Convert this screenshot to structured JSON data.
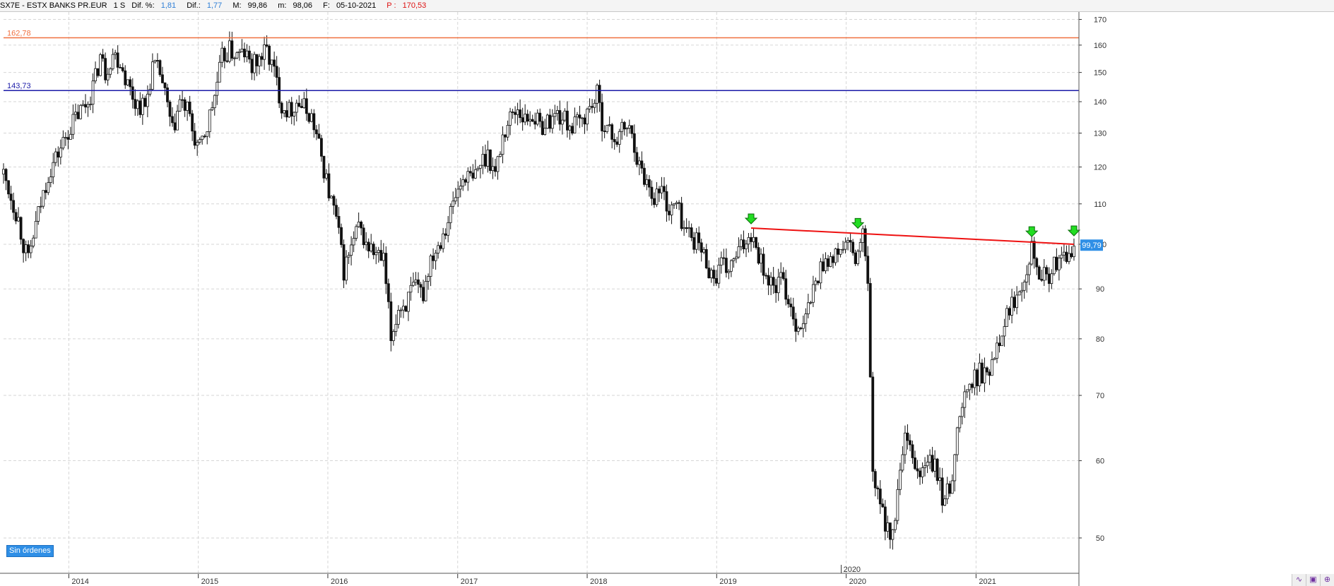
{
  "header": {
    "symbol": "SX7E - ESTX BANKS PR.EUR",
    "timeframe": "1 S",
    "dif_pct_label": "Dif. %:",
    "dif_pct_value": "1,81",
    "dif_label": "Dif.:",
    "dif_value": "1,77",
    "max_label": "M:",
    "max_value": "99,86",
    "min_label": "m:",
    "min_value": "98,06",
    "date_label": "F:",
    "date_value": "05-10-2021",
    "price_label": "P :",
    "price_value": "170,53"
  },
  "orders_badge": "Sin órdenes",
  "chart_data": {
    "type": "candlestick",
    "y_scale": "log",
    "ylim": [
      46,
      173
    ],
    "xlim": [
      "2013-07-01",
      "2021-10-18"
    ],
    "ytick_labels": [
      "170",
      "160",
      "150",
      "140",
      "130",
      "120",
      "110",
      "100",
      "90",
      "80",
      "70",
      "60",
      "50"
    ],
    "xtick_labels": [
      "2014",
      "2015",
      "2016",
      "2017",
      "2018",
      "2019",
      "2020",
      "2021"
    ],
    "secondary_x_label": "2020",
    "last_price_label": "99,79",
    "last_price": 99.79,
    "grid": true,
    "horizontal_levels": [
      {
        "value": 162.78,
        "label": "162,78",
        "color": "#f07040"
      },
      {
        "value": 143.73,
        "label": "143,73",
        "color": "#1a1aa8"
      }
    ],
    "resistance_line": {
      "color": "#ee1111",
      "points": [
        [
          "2019-04-08",
          103.9
        ],
        [
          "2021-10-04",
          100.0
        ]
      ]
    },
    "markers": [
      {
        "date": "2019-04-08",
        "value": 103.9
      },
      {
        "date": "2020-02-03",
        "value": 102.8
      },
      {
        "date": "2021-06-07",
        "value": 100.8
      },
      {
        "date": "2021-10-04",
        "value": 101.0
      }
    ],
    "weekly_close_series": [
      [
        "2013-07-01",
        118
      ],
      [
        "2013-07-22",
        112
      ],
      [
        "2013-08-12",
        106
      ],
      [
        "2013-08-26",
        100
      ],
      [
        "2013-09-09",
        96
      ],
      [
        "2013-09-23",
        102
      ],
      [
        "2013-10-14",
        110
      ],
      [
        "2013-11-04",
        118
      ],
      [
        "2013-12-02",
        124
      ],
      [
        "2014-01-06",
        132
      ],
      [
        "2014-01-27",
        136
      ],
      [
        "2014-02-24",
        140
      ],
      [
        "2014-03-17",
        148
      ],
      [
        "2014-03-31",
        156
      ],
      [
        "2014-04-14",
        150
      ],
      [
        "2014-05-05",
        157
      ],
      [
        "2014-05-26",
        154
      ],
      [
        "2014-06-16",
        146
      ],
      [
        "2014-07-07",
        140
      ],
      [
        "2014-08-04",
        138
      ],
      [
        "2014-08-25",
        152
      ],
      [
        "2014-09-15",
        150
      ],
      [
        "2014-10-06",
        138
      ],
      [
        "2014-10-20",
        130
      ],
      [
        "2014-11-10",
        140
      ],
      [
        "2014-12-01",
        137
      ],
      [
        "2014-12-22",
        128
      ],
      [
        "2015-01-05",
        125
      ],
      [
        "2015-01-26",
        132
      ],
      [
        "2015-02-16",
        142
      ],
      [
        "2015-03-09",
        155
      ],
      [
        "2015-03-30",
        158
      ],
      [
        "2015-04-20",
        156
      ],
      [
        "2015-05-11",
        157
      ],
      [
        "2015-06-01",
        152
      ],
      [
        "2015-06-22",
        155
      ],
      [
        "2015-07-13",
        158
      ],
      [
        "2015-08-03",
        150
      ],
      [
        "2015-08-24",
        139
      ],
      [
        "2015-09-14",
        137
      ],
      [
        "2015-10-05",
        140
      ],
      [
        "2015-10-26",
        138
      ],
      [
        "2015-11-16",
        135
      ],
      [
        "2015-12-07",
        126
      ],
      [
        "2016-01-04",
        113
      ],
      [
        "2016-01-25",
        106
      ],
      [
        "2016-02-15",
        94
      ],
      [
        "2016-03-07",
        99
      ],
      [
        "2016-03-28",
        104
      ],
      [
        "2016-04-18",
        100
      ],
      [
        "2016-05-09",
        98
      ],
      [
        "2016-06-06",
        96
      ],
      [
        "2016-06-27",
        80
      ],
      [
        "2016-07-18",
        86
      ],
      [
        "2016-08-08",
        87
      ],
      [
        "2016-08-29",
        90
      ],
      [
        "2016-09-26",
        89
      ],
      [
        "2016-10-17",
        97
      ],
      [
        "2016-11-07",
        100
      ],
      [
        "2016-12-05",
        106
      ],
      [
        "2016-12-26",
        112
      ],
      [
        "2017-01-23",
        118
      ],
      [
        "2017-02-13",
        116
      ],
      [
        "2017-03-06",
        121
      ],
      [
        "2017-03-27",
        124
      ],
      [
        "2017-04-17",
        118
      ],
      [
        "2017-05-08",
        129
      ],
      [
        "2017-05-29",
        135
      ],
      [
        "2017-06-19",
        138
      ],
      [
        "2017-07-10",
        134
      ],
      [
        "2017-07-31",
        136
      ],
      [
        "2017-08-21",
        132
      ],
      [
        "2017-09-18",
        134
      ],
      [
        "2017-10-09",
        136
      ],
      [
        "2017-10-30",
        134
      ],
      [
        "2017-11-20",
        132
      ],
      [
        "2017-12-18",
        134
      ],
      [
        "2018-01-08",
        138
      ],
      [
        "2018-01-29",
        142
      ],
      [
        "2018-02-12",
        134
      ],
      [
        "2018-03-05",
        130
      ],
      [
        "2018-03-26",
        128
      ],
      [
        "2018-04-16",
        132
      ],
      [
        "2018-05-07",
        130
      ],
      [
        "2018-05-28",
        120
      ],
      [
        "2018-06-18",
        116
      ],
      [
        "2018-07-09",
        112
      ],
      [
        "2018-07-30",
        114
      ],
      [
        "2018-08-20",
        108
      ],
      [
        "2018-09-10",
        110
      ],
      [
        "2018-10-01",
        104
      ],
      [
        "2018-10-22",
        102
      ],
      [
        "2018-11-12",
        100
      ],
      [
        "2018-12-03",
        96
      ],
      [
        "2018-12-24",
        92
      ],
      [
        "2019-01-14",
        95
      ],
      [
        "2019-02-04",
        94
      ],
      [
        "2019-02-25",
        97
      ],
      [
        "2019-03-18",
        100
      ],
      [
        "2019-04-08",
        103
      ],
      [
        "2019-04-29",
        98
      ],
      [
        "2019-05-20",
        93
      ],
      [
        "2019-06-10",
        90
      ],
      [
        "2019-07-01",
        92
      ],
      [
        "2019-07-22",
        88
      ],
      [
        "2019-08-12",
        83
      ],
      [
        "2019-09-02",
        82
      ],
      [
        "2019-09-23",
        88
      ],
      [
        "2019-10-14",
        93
      ],
      [
        "2019-11-04",
        97
      ],
      [
        "2019-11-25",
        96
      ],
      [
        "2019-12-16",
        99
      ],
      [
        "2020-01-06",
        100
      ],
      [
        "2020-01-27",
        96
      ],
      [
        "2020-02-17",
        102
      ],
      [
        "2020-03-02",
        90
      ],
      [
        "2020-03-16",
        58
      ],
      [
        "2020-03-30",
        55
      ],
      [
        "2020-04-20",
        52
      ],
      [
        "2020-05-11",
        50
      ],
      [
        "2020-06-01",
        58
      ],
      [
        "2020-06-15",
        63
      ],
      [
        "2020-07-06",
        60
      ],
      [
        "2020-07-27",
        58
      ],
      [
        "2020-08-17",
        60
      ],
      [
        "2020-09-07",
        59
      ],
      [
        "2020-09-28",
        55
      ],
      [
        "2020-10-19",
        56
      ],
      [
        "2020-11-09",
        64
      ],
      [
        "2020-11-30",
        70
      ],
      [
        "2020-12-21",
        72
      ],
      [
        "2021-01-11",
        74
      ],
      [
        "2021-02-01",
        73
      ],
      [
        "2021-02-22",
        78
      ],
      [
        "2021-03-15",
        82
      ],
      [
        "2021-04-05",
        86
      ],
      [
        "2021-04-26",
        89
      ],
      [
        "2021-05-17",
        93
      ],
      [
        "2021-06-07",
        100
      ],
      [
        "2021-06-28",
        94
      ],
      [
        "2021-07-19",
        92
      ],
      [
        "2021-08-09",
        95
      ],
      [
        "2021-08-30",
        96
      ],
      [
        "2021-09-20",
        97
      ],
      [
        "2021-10-04",
        99.79
      ]
    ]
  }
}
